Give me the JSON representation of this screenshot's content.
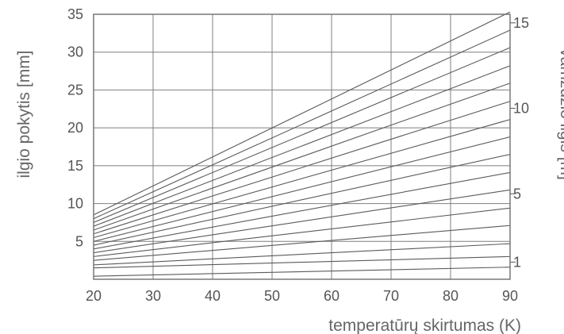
{
  "chart_data": {
    "type": "line",
    "title": "",
    "xlabel": "temperatūrų skirtumas (K)",
    "ylabel": "ilgio pokytis [mm]",
    "y2label": "vamzdžio ilgis [m]",
    "xlim": [
      20,
      90
    ],
    "ylim": [
      0,
      35
    ],
    "x_ticks": [
      "20",
      "30",
      "40",
      "50",
      "60",
      "70",
      "80",
      "90"
    ],
    "y_ticks": [
      "5",
      "10",
      "15",
      "20",
      "25",
      "30",
      "35"
    ],
    "y2_ticks": [
      "1",
      "5",
      "10",
      "15"
    ],
    "grid": true,
    "x": [
      20,
      90
    ],
    "series": [
      {
        "values": [
          0.4,
          1.6
        ]
      },
      {
        "values": [
          1.5,
          3.0
        ]
      },
      {
        "values": [
          1.9,
          4.7
        ]
      },
      {
        "values": [
          2.5,
          7.1
        ]
      },
      {
        "values": [
          3.0,
          9.4
        ]
      },
      {
        "values": [
          3.5,
          11.8
        ]
      },
      {
        "values": [
          4.0,
          14.1
        ]
      },
      {
        "values": [
          4.5,
          16.5
        ]
      },
      {
        "values": [
          5.0,
          18.8
        ]
      },
      {
        "values": [
          5.5,
          21.1
        ]
      },
      {
        "values": [
          6.0,
          23.5
        ]
      },
      {
        "values": [
          6.5,
          25.9
        ]
      },
      {
        "values": [
          7.0,
          28.2
        ]
      },
      {
        "values": [
          7.5,
          30.6
        ]
      },
      {
        "values": [
          8.0,
          32.9
        ]
      },
      {
        "values": [
          8.5,
          35.3
        ]
      }
    ]
  },
  "colors": {
    "grid": "#7f7f7f",
    "series": "#5a5a5a",
    "text": "#555555"
  }
}
